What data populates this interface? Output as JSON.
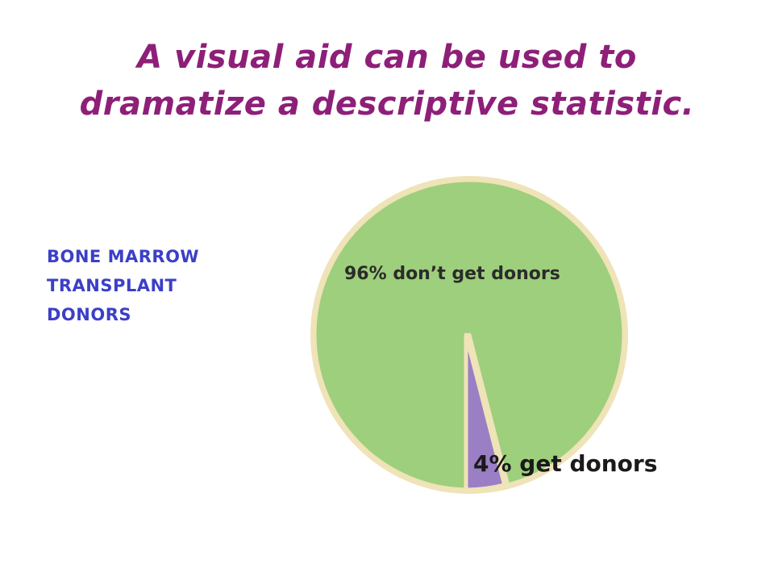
{
  "title": {
    "line1": "A visual aid can be used to",
    "line2": "dramatize a descriptive statistic."
  },
  "side_label": {
    "line1": "BONE MARROW",
    "line2": "TRANSPLANT",
    "line3": "DONORS"
  },
  "colors": {
    "title": "#8e1f78",
    "side_label": "#3b3fc7",
    "slice_no_donor": "#9ecf7c",
    "slice_donor": "#9b7fc4",
    "slice_border": "#efe3b8"
  },
  "chart_data": {
    "type": "pie",
    "slices": [
      {
        "label": "96% don’t get donors",
        "value": 96
      },
      {
        "label": "4% get donors",
        "value": 4
      }
    ]
  }
}
